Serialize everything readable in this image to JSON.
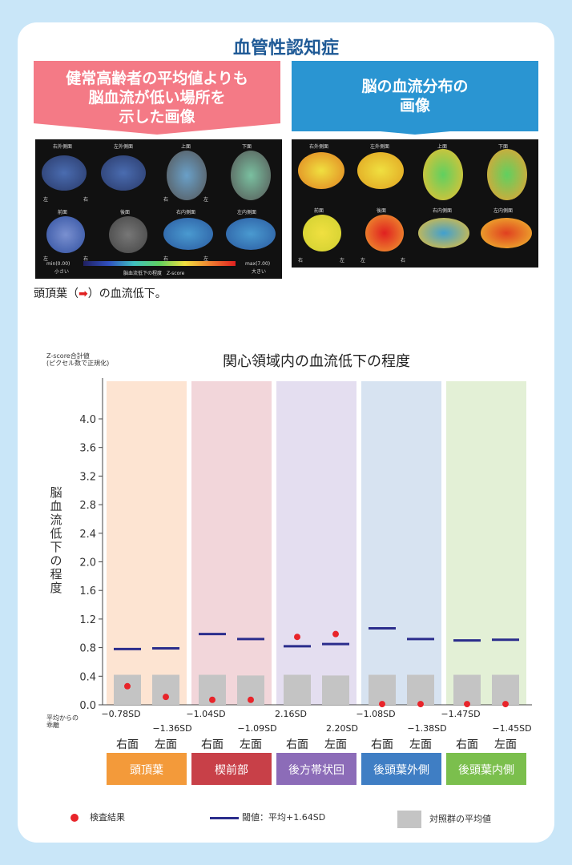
{
  "header": {
    "title": "血管性認知症",
    "left_banner": [
      "健常高齢者の平均値よりも",
      "脳血流が低い場所を",
      "示した画像"
    ],
    "right_banner": [
      "脳の血流分布の",
      "画像"
    ]
  },
  "left_panel": {
    "views": [
      "右外側面",
      "左外側面",
      "上面",
      "下面",
      "前面",
      "後面",
      "右内側面",
      "左内側面"
    ],
    "side_labels": [
      "左",
      "右",
      "右",
      "左",
      "左",
      "右",
      "右",
      "左"
    ],
    "scale_min": "min(0.00)",
    "scale_min_sub": "小さい",
    "scale_max": "max(7.00)",
    "scale_max_sub": "大きい",
    "scale_caption": "脳血流低下の程度　Z-score"
  },
  "right_panel": {
    "views": [
      "右外側面",
      "左外側面",
      "上面",
      "下面",
      "前面",
      "後面",
      "右内側面",
      "左内側面"
    ],
    "side_labels": [
      "右",
      "左",
      "左",
      "右"
    ]
  },
  "caption": {
    "before": "頭頂葉（",
    "arrow": "➡",
    "after": "）の血流低下。"
  },
  "chart_data": {
    "type": "bar",
    "title": "関心領域内の血流低下の程度",
    "ylabel_top": [
      "Z-score合計値",
      "(ピクセル数で正規化)"
    ],
    "ylabel": "脳血流低下の程度",
    "ylim": [
      0,
      4.0
    ],
    "yticks": [
      "0.0",
      "0.4",
      "0.8",
      "1.2",
      "1.6",
      "2.0",
      "2.4",
      "2.8",
      "3.2",
      "3.6",
      "4.0"
    ],
    "categories": [
      "右面",
      "左面",
      "右面",
      "左面",
      "右面",
      "左面",
      "右面",
      "左面",
      "右面",
      "左面"
    ],
    "regions": [
      {
        "name": "頭頂葉",
        "color": "#f39a3a",
        "bg": "#fde4d2"
      },
      {
        "name": "楔前部",
        "color": "#c84048",
        "bg": "#f2d6da"
      },
      {
        "name": "後方帯状回",
        "color": "#8c6cb8",
        "bg": "#e4def0"
      },
      {
        "name": "後頭葉外側",
        "color": "#3f7ec4",
        "bg": "#d7e3f1"
      },
      {
        "name": "後頭葉内側",
        "color": "#7bbf4d",
        "bg": "#e3f0d6"
      }
    ],
    "series": [
      {
        "name": "検査結果",
        "values": [
          0.26,
          0.11,
          0.07,
          0.07,
          0.95,
          0.99,
          0.01,
          0.01,
          0.01,
          0.01
        ]
      },
      {
        "name": "閾値：平均+1.64SD",
        "values": [
          0.78,
          0.79,
          0.99,
          0.92,
          0.82,
          0.85,
          1.07,
          0.92,
          0.9,
          0.91
        ]
      },
      {
        "name": "対照群の平均値",
        "values": [
          0.42,
          0.42,
          0.42,
          0.41,
          0.42,
          0.41,
          0.42,
          0.42,
          0.42,
          0.42
        ]
      }
    ],
    "sd_row_label": [
      "平均からの",
      "乖離"
    ],
    "sd_values": [
      "−0.78SD",
      "−1.36SD",
      "−1.04SD",
      "−1.09SD",
      "2.16SD",
      "2.20SD",
      "−1.08SD",
      "−1.38SD",
      "−1.47SD",
      "−1.45SD"
    ],
    "legend": [
      "検査結果",
      "閾値：平均+1.64SD",
      "対照群の平均値"
    ],
    "colors": {
      "dot": "#e8242a",
      "threshold": "#2b2d8c",
      "control": "#c4c4c4"
    }
  }
}
